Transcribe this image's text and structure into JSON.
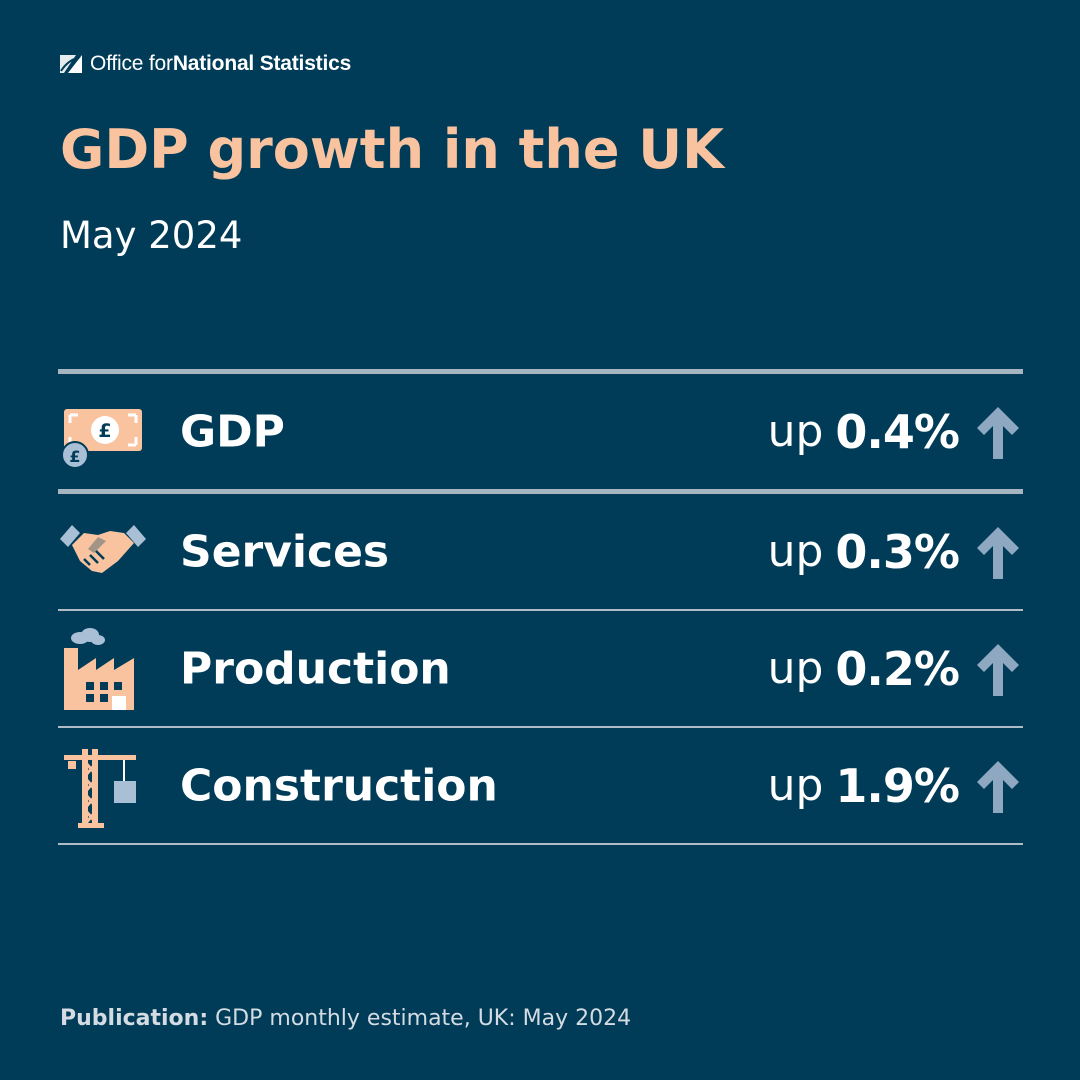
{
  "brand": {
    "name_prefix": "Office for ",
    "name_bold": "National Statistics",
    "logo_icon": "ons-logo-icon"
  },
  "title": "GDP growth in the UK",
  "subtitle": "May 2024",
  "colors": {
    "background": "#003c57",
    "title": "#f9c3a0",
    "icon_fill": "#f9c3a0",
    "icon_secondary": "#a9bfd6",
    "arrow": "#8fa8c2",
    "rule": "#c2c9d1"
  },
  "rows": [
    {
      "icon": "banknote-pound-icon",
      "label": "GDP",
      "direction": "up",
      "value": "0.4%",
      "arrow_icon": "arrow-up-icon"
    },
    {
      "icon": "handshake-icon",
      "label": "Services",
      "direction": "up",
      "value": "0.3%",
      "arrow_icon": "arrow-up-icon"
    },
    {
      "icon": "factory-icon",
      "label": "Production",
      "direction": "up",
      "value": "0.2%",
      "arrow_icon": "arrow-up-icon"
    },
    {
      "icon": "crane-icon",
      "label": "Construction",
      "direction": "up",
      "value": "1.9%",
      "arrow_icon": "arrow-up-icon"
    }
  ],
  "footer": {
    "label": "Publication:",
    "text": " GDP monthly estimate, UK: May 2024"
  }
}
